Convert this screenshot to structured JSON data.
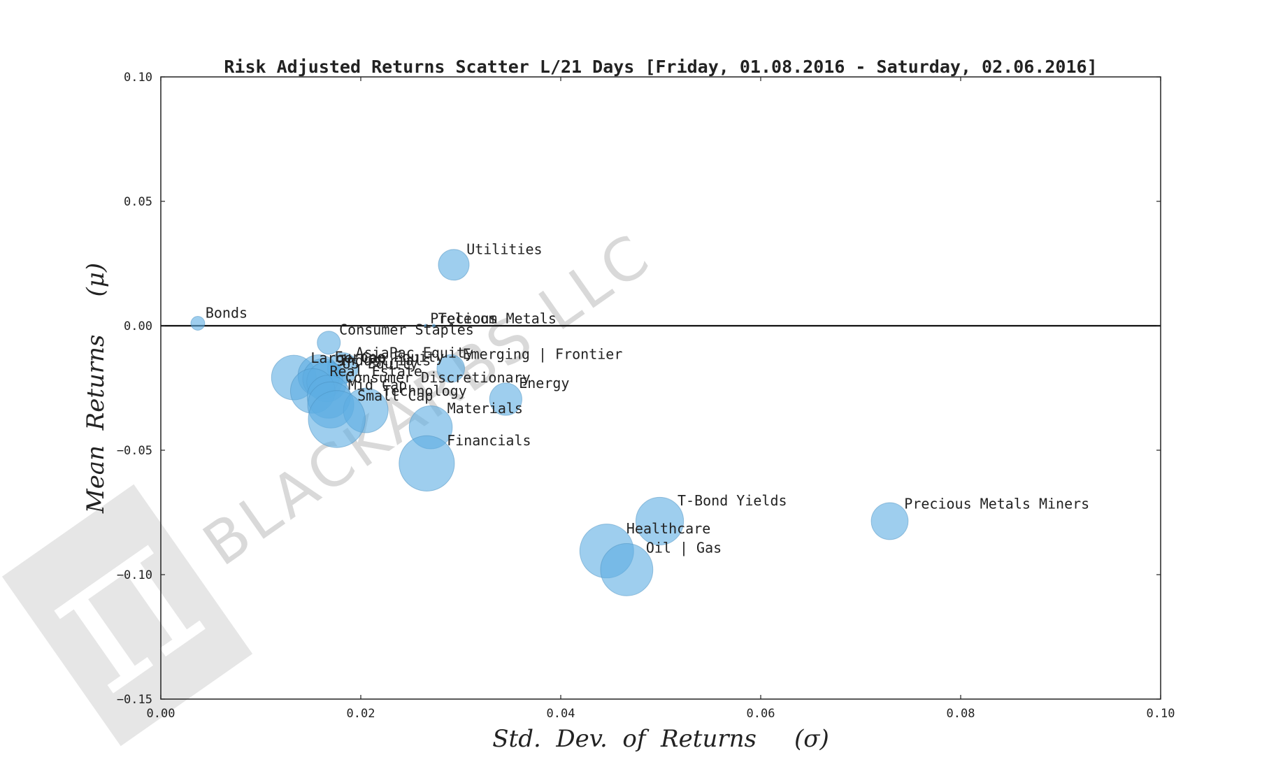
{
  "chart_data": {
    "type": "scatter",
    "title": "Risk Adjusted Returns Scatter L/21 Days [Friday, 01.08.2016 - Saturday, 02.06.2016]",
    "xlabel": "Std.  Dev.  of  Returns     (σ)",
    "ylabel": "Mean  Returns     (μ)",
    "xlim": [
      0.0,
      0.1
    ],
    "ylim": [
      -0.15,
      0.1
    ],
    "xticks": [
      0.0,
      0.02,
      0.04,
      0.06,
      0.08,
      0.1
    ],
    "yticks": [
      0.1,
      0.05,
      0.0,
      -0.05,
      -0.1,
      -0.15
    ],
    "xtick_labels": [
      "0.00",
      "0.02",
      "0.04",
      "0.06",
      "0.08",
      "0.10"
    ],
    "ytick_labels": [
      "0.10",
      "0.05",
      "0.00",
      "−0.05",
      "−0.10",
      "−0.15"
    ],
    "hline": 0.0,
    "grid": false,
    "marker_color": "#5dade2",
    "marker_opacity": 0.6,
    "points": [
      {
        "label": "Utilities",
        "x": 0.0293,
        "y": 0.0245,
        "size": 1.0
      },
      {
        "label": "Bonds",
        "x": 0.0037,
        "y": 0.001,
        "size": 0.45
      },
      {
        "label": "Precious Metals",
        "x": 0.0265,
        "y": 0.0,
        "size": 0.1
      },
      {
        "label": "Telecom",
        "x": 0.0273,
        "y": 0.0,
        "size": 0.1
      },
      {
        "label": "Consumer Staples",
        "x": 0.0168,
        "y": -0.0068,
        "size": 0.75
      },
      {
        "label": "AsiaPac Equity",
        "x": 0.0182,
        "y": -0.017,
        "size": 1.0
      },
      {
        "label": "Emerging | Frontier",
        "x": 0.029,
        "y": -0.0172,
        "size": 0.9
      },
      {
        "label": "Large Cap",
        "x": 0.0133,
        "y": -0.0208,
        "size": 1.45
      },
      {
        "label": "Europe Equity",
        "x": 0.0158,
        "y": -0.02,
        "size": 1.35
      },
      {
        "label": "Industrials",
        "x": 0.0162,
        "y": -0.0213,
        "size": 1.3
      },
      {
        "label": "US Equity",
        "x": 0.0166,
        "y": -0.0225,
        "size": 1.3
      },
      {
        "label": "Real Estate",
        "x": 0.0152,
        "y": -0.0262,
        "size": 1.45
      },
      {
        "label": "Consumer Discretionary",
        "x": 0.0168,
        "y": -0.0285,
        "size": 1.4
      },
      {
        "label": "Energy",
        "x": 0.0345,
        "y": -0.0295,
        "size": 1.05
      },
      {
        "label": "Mid Cap",
        "x": 0.017,
        "y": -0.0318,
        "size": 1.5
      },
      {
        "label": "Technology",
        "x": 0.0205,
        "y": -0.034,
        "size": 1.45
      },
      {
        "label": "Small Cap",
        "x": 0.0176,
        "y": -0.0375,
        "size": 1.85
      },
      {
        "label": "Materials",
        "x": 0.027,
        "y": -0.0408,
        "size": 1.4
      },
      {
        "label": "Financials",
        "x": 0.0266,
        "y": -0.0553,
        "size": 1.8
      },
      {
        "label": "T-Bond Yields",
        "x": 0.0499,
        "y": -0.0785,
        "size": 1.55
      },
      {
        "label": "Precious Metals Miners",
        "x": 0.0729,
        "y": -0.0785,
        "size": 1.2
      },
      {
        "label": "Healthcare",
        "x": 0.0446,
        "y": -0.0905,
        "size": 1.75
      },
      {
        "label": "Oil | Gas",
        "x": 0.0466,
        "y": -0.098,
        "size": 1.7
      }
    ]
  },
  "watermark": {
    "text": "BLACKARBS LLC",
    "symbol": "π"
  }
}
